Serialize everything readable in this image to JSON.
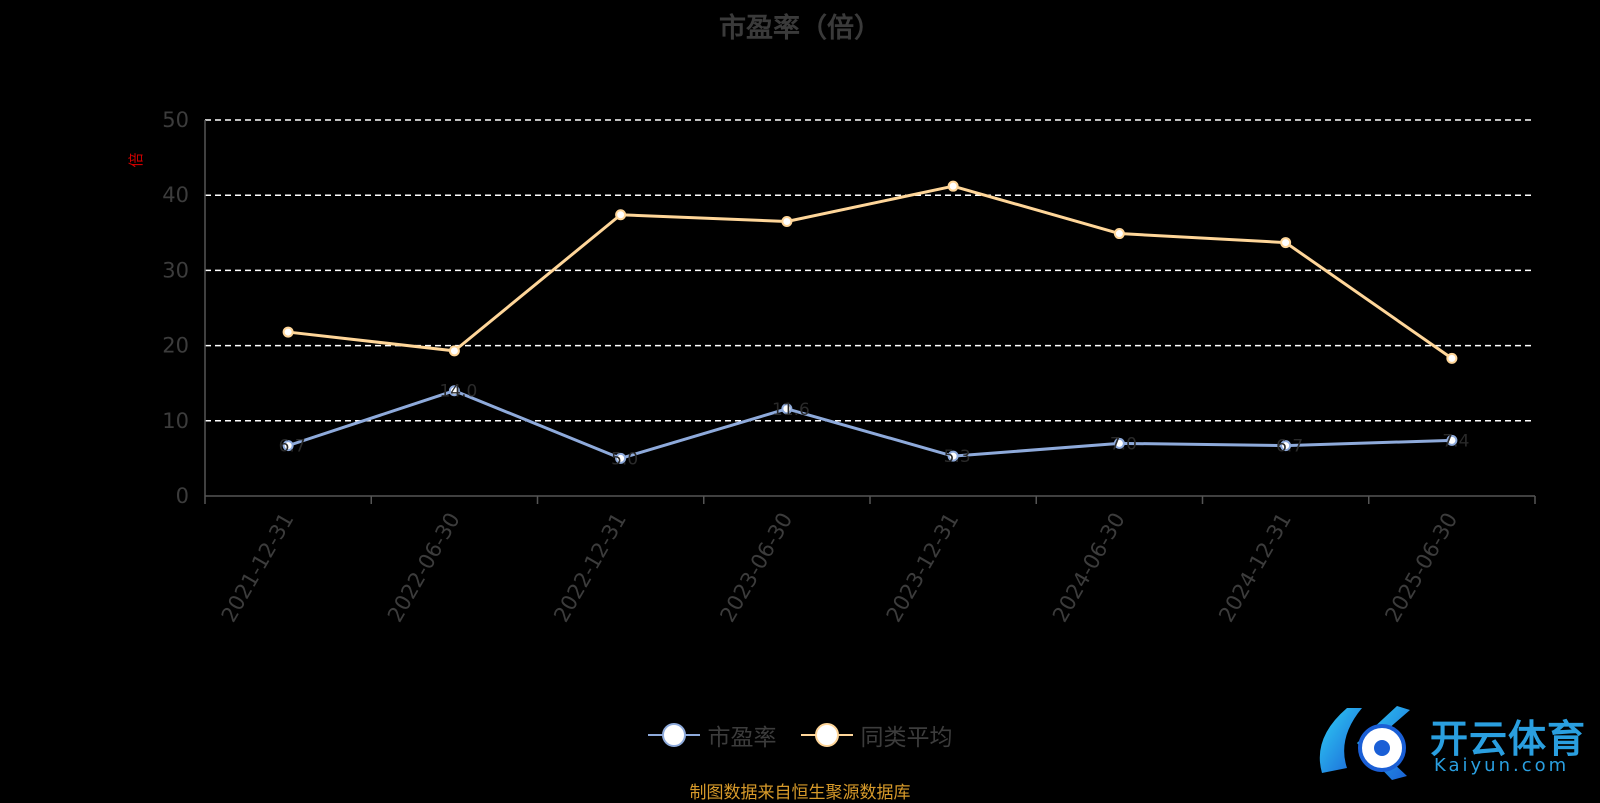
{
  "chart_data": {
    "type": "line",
    "title": "市盈率（倍）",
    "ylabel": "倍",
    "ylim": [
      0,
      50
    ],
    "yticks": [
      0,
      10,
      20,
      30,
      40,
      50
    ],
    "grid": true,
    "legend_position": "bottom",
    "categories": [
      "2021-12-31",
      "2022-06-30",
      "2022-12-31",
      "2023-06-30",
      "2023-12-31",
      "2024-06-30",
      "2024-12-31",
      "2025-06-30"
    ],
    "series": [
      {
        "name": "市盈率",
        "color": "#8eaadb",
        "values": [
          6.7,
          14.0,
          5.0,
          11.6,
          5.3,
          7.0,
          6.7,
          7.4
        ],
        "labels": [
          "6.7",
          "14.0",
          "5.0",
          "11.6",
          "5.3",
          "7.0",
          "6.7",
          "7.4"
        ]
      },
      {
        "name": "同类平均",
        "color": "#ffd699",
        "values": [
          21.8,
          19.3,
          37.4,
          36.5,
          41.2,
          34.9,
          33.7,
          18.3
        ]
      }
    ]
  },
  "source_note": "制图数据来自恒生聚源数据库",
  "logo": {
    "name": "开云体育",
    "url_text": "Kaiyun.com"
  }
}
